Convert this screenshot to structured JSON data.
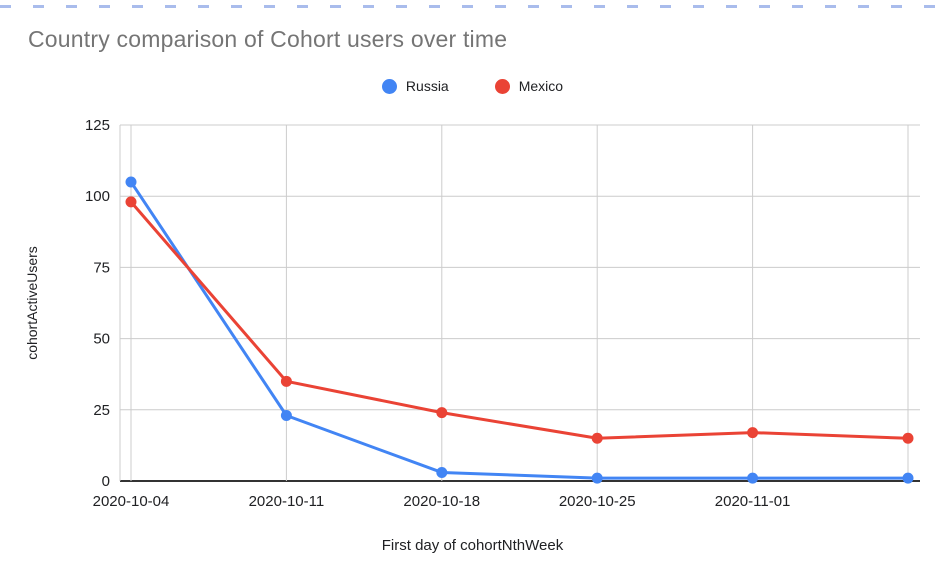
{
  "chart_data": {
    "type": "line",
    "title": "Country comparison of Cohort users over time",
    "xlabel": "First day of cohortNthWeek",
    "ylabel": "cohortActiveUsers",
    "x_tick_labels": [
      "2020-10-04",
      "2020-10-11",
      "2020-10-18",
      "2020-10-25",
      "2020-11-01",
      ""
    ],
    "y_ticks": [
      0,
      25,
      50,
      75,
      100,
      125
    ],
    "ylim": [
      0,
      125
    ],
    "grid": true,
    "legend_position": "top-center",
    "series": [
      {
        "name": "Russia",
        "color": "#4285F4",
        "values": [
          105,
          23,
          3,
          1,
          1,
          1
        ]
      },
      {
        "name": "Mexico",
        "color": "#EA4335",
        "values": [
          98,
          35,
          24,
          15,
          17,
          15
        ]
      }
    ],
    "colors": {
      "gridline": "#cccccc",
      "baseline": "#333333",
      "tick_label": "#202124",
      "title_text": "#757575"
    }
  }
}
